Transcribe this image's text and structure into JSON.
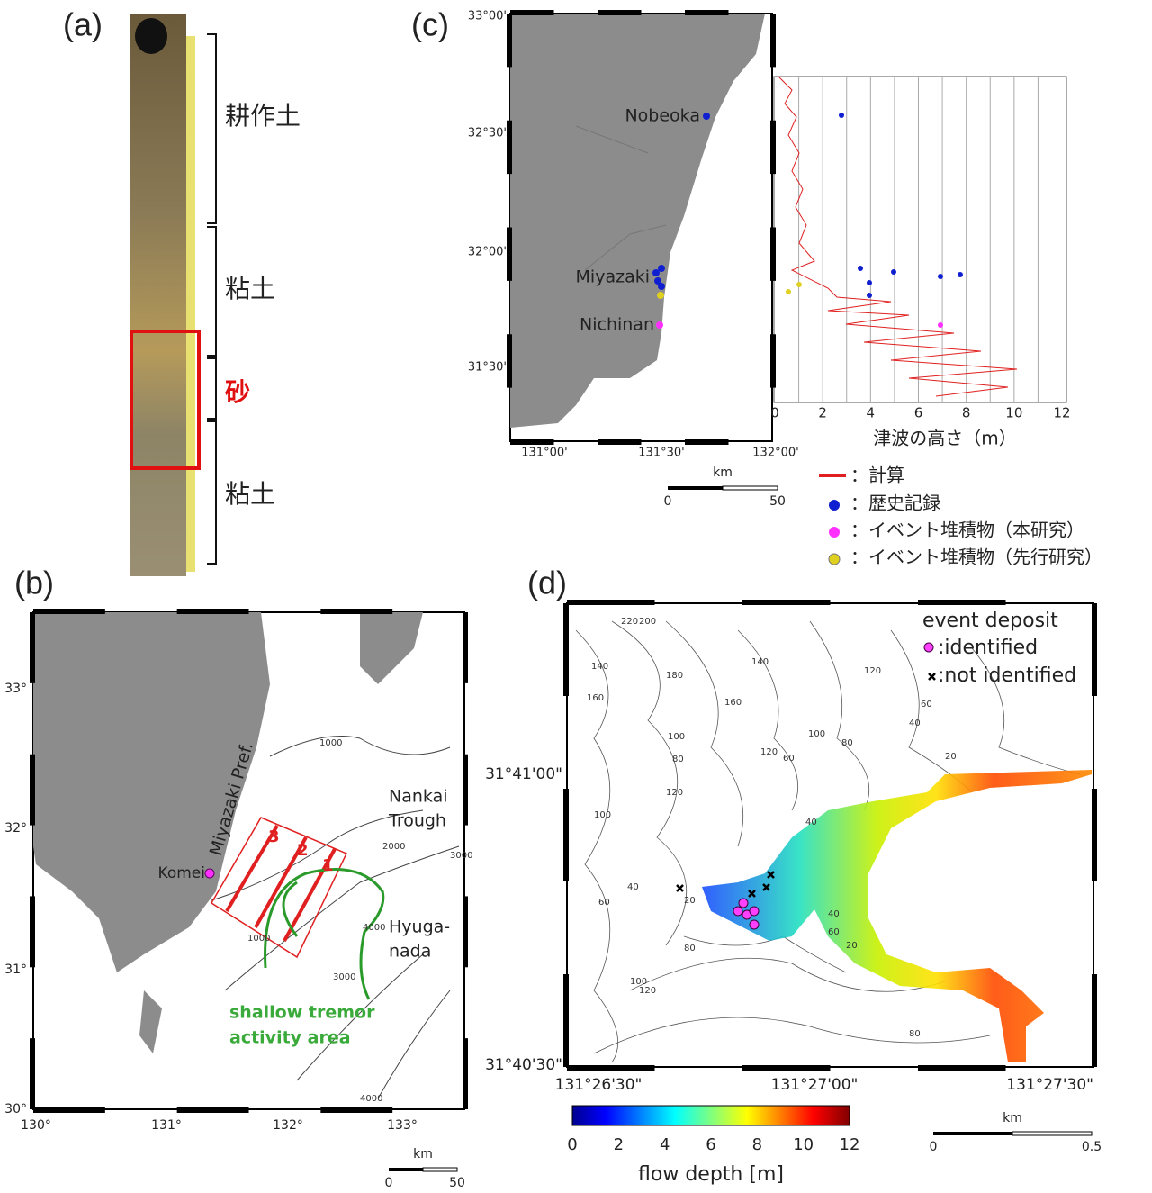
{
  "panel_a": {
    "label": "(a)",
    "layers": [
      "耕作土",
      "粘土",
      "砂",
      "粘土"
    ]
  },
  "panel_b": {
    "label": "(b)",
    "lat_ticks": [
      "33°",
      "32°",
      "31°",
      "30°"
    ],
    "lon_ticks": [
      "130°",
      "131°",
      "132°",
      "133°"
    ],
    "prefecture": "Miyazaki Pref.",
    "site": "Komei",
    "trough": [
      "Nankai",
      "Trough"
    ],
    "sea": [
      "Hyuga-",
      "nada"
    ],
    "tremor": [
      "shallow tremor",
      "activity area"
    ],
    "segments": [
      "3",
      "2",
      "1"
    ],
    "contours": [
      "1000",
      "2000",
      "3000",
      "4000",
      "1000",
      "3000",
      "4000"
    ],
    "scale": {
      "unit": "km",
      "ticks": [
        "0",
        "50"
      ]
    }
  },
  "panel_c": {
    "label": "(c)",
    "lat_ticks": [
      "33°00'",
      "32°30'",
      "32°00'",
      "31°30'"
    ],
    "lon_ticks": [
      "131°00'",
      "131°30'",
      "132°00'"
    ],
    "places": [
      "Nobeoka",
      "Miyazaki",
      "Nichinan"
    ],
    "height_ticks": [
      "0",
      "2",
      "4",
      "6",
      "8",
      "10",
      "12"
    ],
    "height_axis": "津波の高さ（m）",
    "scale": {
      "unit": "km",
      "ticks": [
        "0",
        "50"
      ]
    },
    "legend": [
      "：計算",
      "：歴史記録",
      "：イベント堆積物（本研究）",
      "：イベント堆積物（先行研究）"
    ]
  },
  "panel_d": {
    "label": "(d)",
    "lat_ticks": [
      "31°41'00\"",
      "31°40'30\""
    ],
    "lon_ticks": [
      "131°26'30\"",
      "131°27'00\"",
      "131°27'30\""
    ],
    "legend_title": "event deposit",
    "legend": [
      ":identified",
      ":not identified"
    ],
    "contours": [
      "220",
      "200",
      "180",
      "140",
      "160",
      "140",
      "120",
      "160",
      "120",
      "100",
      "80",
      "100",
      "80",
      "120",
      "100",
      "60",
      "40",
      "60",
      "40",
      "20",
      "40",
      "60",
      "20",
      "80",
      "100",
      "120",
      "60",
      "40",
      "20",
      "80"
    ],
    "colorbar_ticks": [
      "0",
      "2",
      "4",
      "6",
      "8",
      "10",
      "12"
    ],
    "colorbar_label": "flow depth [m]",
    "scale": {
      "unit": "km",
      "ticks": [
        "0",
        "0.5"
      ]
    }
  }
}
